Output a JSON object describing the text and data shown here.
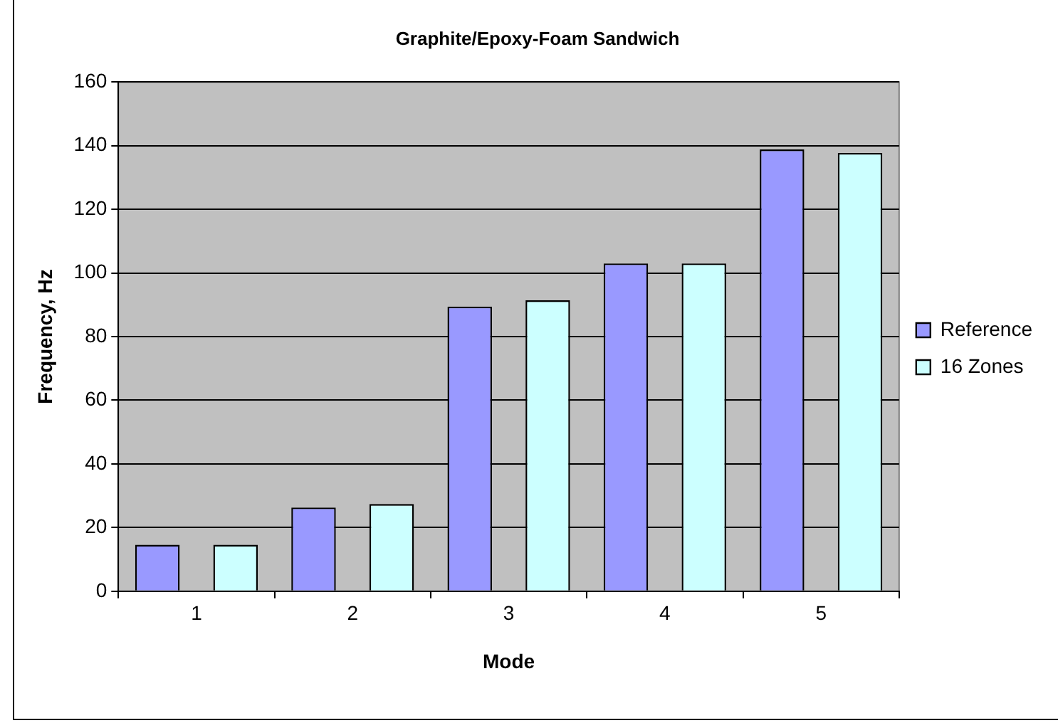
{
  "chart_data": {
    "type": "bar",
    "title": "Graphite/Epoxy-Foam Sandwich",
    "xlabel": "Mode",
    "ylabel": "Frequency, Hz",
    "categories": [
      "1",
      "2",
      "3",
      "4",
      "5"
    ],
    "series": [
      {
        "name": "Reference",
        "color": "#9999ff",
        "values": [
          14.6,
          26.3,
          89.4,
          103,
          138.8
        ]
      },
      {
        "name": "16 Zones",
        "color": "#ccffff",
        "values": [
          14.6,
          27.4,
          91.4,
          103,
          137.7
        ]
      }
    ],
    "ylim": [
      0,
      160
    ],
    "yticks": [
      0,
      20,
      40,
      60,
      80,
      100,
      120,
      140,
      160
    ],
    "grid": "y",
    "legend": "right"
  }
}
